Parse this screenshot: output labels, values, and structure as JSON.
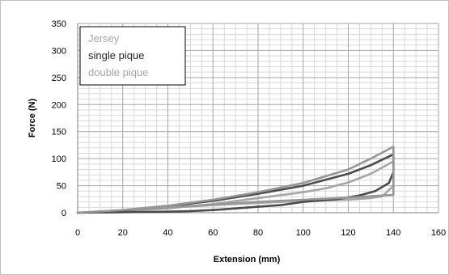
{
  "chart_data": {
    "type": "line",
    "xlabel": "Extension (mm)",
    "ylabel": "Force (N)",
    "xlim": [
      0,
      160
    ],
    "ylim": [
      0,
      350
    ],
    "x_ticks": [
      "0",
      "20",
      "40",
      "60",
      "80",
      "100",
      "120",
      "140",
      "160"
    ],
    "y_ticks": [
      "0",
      "50",
      "100",
      "150",
      "200",
      "250",
      "300",
      "350"
    ],
    "grid": true,
    "legend_position": "top-left",
    "series": [
      {
        "name": "Jersey",
        "color": "#a6a6a6",
        "points": [
          [
            0,
            0
          ],
          [
            10,
            1
          ],
          [
            20,
            3
          ],
          [
            40,
            8
          ],
          [
            60,
            16
          ],
          [
            80,
            27
          ],
          [
            100,
            38
          ],
          [
            110,
            45
          ],
          [
            120,
            56
          ],
          [
            130,
            72
          ],
          [
            140,
            95
          ],
          [
            140,
            50
          ],
          [
            135,
            30
          ],
          [
            130,
            27
          ],
          [
            120,
            24
          ],
          [
            100,
            22
          ],
          [
            80,
            18
          ],
          [
            60,
            14
          ],
          [
            40,
            9
          ],
          [
            20,
            4
          ],
          [
            0,
            0
          ]
        ]
      },
      {
        "name": "single pique",
        "color": "#4a4a4a",
        "points": [
          [
            0,
            0
          ],
          [
            20,
            4
          ],
          [
            40,
            12
          ],
          [
            60,
            22
          ],
          [
            80,
            35
          ],
          [
            100,
            50
          ],
          [
            120,
            72
          ],
          [
            130,
            88
          ],
          [
            140,
            108
          ],
          [
            140,
            75
          ],
          [
            138,
            55
          ],
          [
            132,
            40
          ],
          [
            125,
            32
          ],
          [
            115,
            25
          ],
          [
            100,
            20
          ],
          [
            90,
            14
          ],
          [
            80,
            11
          ],
          [
            70,
            8
          ],
          [
            60,
            5
          ],
          [
            50,
            3
          ],
          [
            40,
            2
          ],
          [
            0,
            0
          ]
        ]
      },
      {
        "name": "double pique",
        "color": "#969696",
        "points": [
          [
            0,
            0
          ],
          [
            20,
            5
          ],
          [
            40,
            13
          ],
          [
            60,
            24
          ],
          [
            80,
            38
          ],
          [
            100,
            55
          ],
          [
            120,
            80
          ],
          [
            130,
            100
          ],
          [
            140,
            122
          ],
          [
            140,
            33
          ],
          [
            120,
            28
          ],
          [
            100,
            24
          ],
          [
            80,
            20
          ],
          [
            60,
            15
          ],
          [
            40,
            10
          ],
          [
            20,
            5
          ],
          [
            0,
            0
          ]
        ]
      }
    ]
  }
}
